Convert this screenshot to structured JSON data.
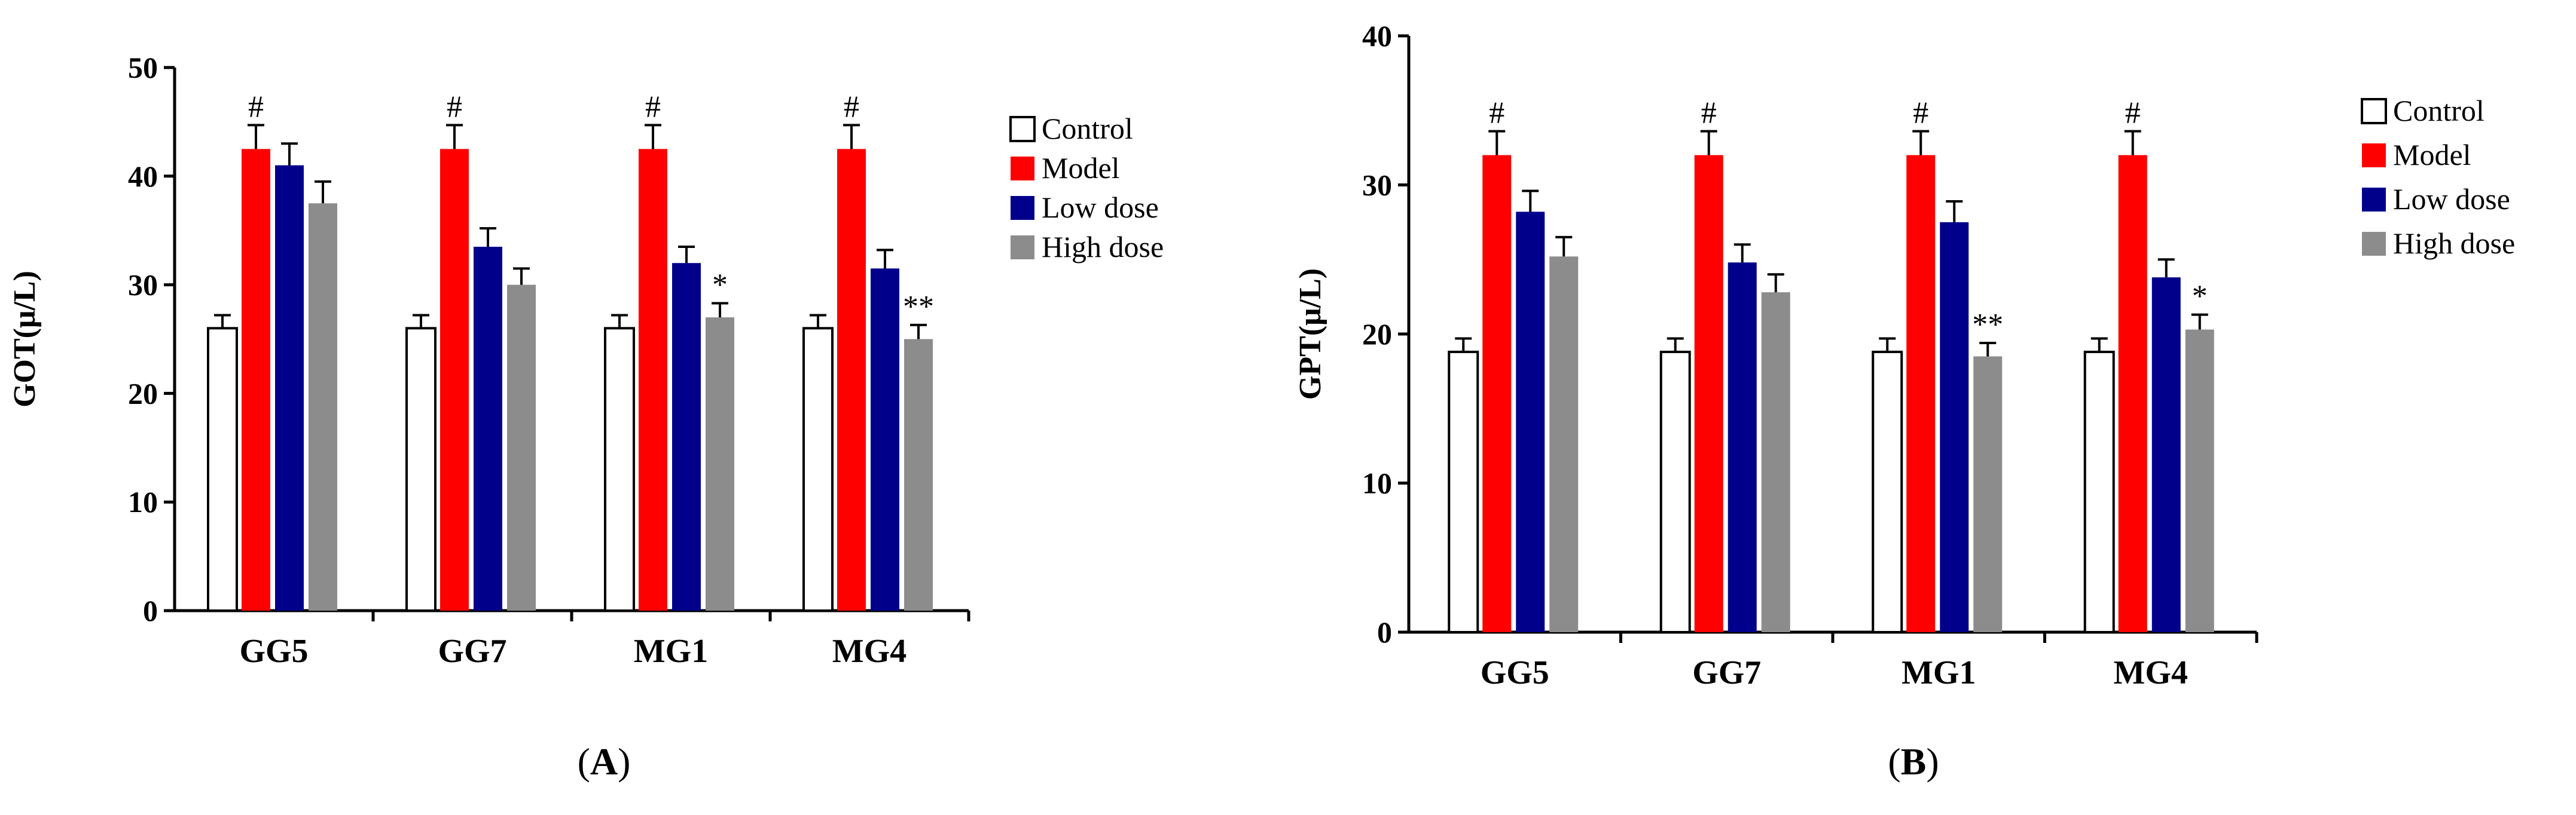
{
  "figure": {
    "panel_a_label_prefix": "(",
    "panel_a_letter": "A",
    "panel_a_label_suffix": ")",
    "panel_b_label_prefix": "(",
    "panel_b_letter": "B",
    "panel_b_label_suffix": ")"
  },
  "colors": {
    "Control": "#ffffff",
    "Model": "#ff0000",
    "Low dose": "#00008b",
    "High dose": "#8c8c8c"
  },
  "chart_data": [
    {
      "type": "bar",
      "panel": "A",
      "title": "",
      "xlabel": "",
      "ylabel": "GOT(μ/L)",
      "ylim": [
        0,
        50
      ],
      "yticks": [
        0,
        10,
        20,
        30,
        40,
        50
      ],
      "categories": [
        "GG5",
        "GG7",
        "MG1",
        "MG4"
      ],
      "series": [
        {
          "name": "Control",
          "values": [
            26,
            26,
            26,
            26
          ],
          "errors": [
            1.2,
            1.2,
            1.2,
            1.2
          ]
        },
        {
          "name": "Model",
          "values": [
            42.5,
            42.5,
            42.5,
            42.5
          ],
          "errors": [
            2.2,
            2.2,
            2.2,
            2.2
          ]
        },
        {
          "name": "Low dose",
          "values": [
            41,
            33.5,
            32,
            31.5
          ],
          "errors": [
            2,
            1.7,
            1.5,
            1.7
          ]
        },
        {
          "name": "High dose",
          "values": [
            37.5,
            30,
            27,
            25
          ],
          "errors": [
            2,
            1.5,
            1.3,
            1.3
          ]
        }
      ],
      "annotations": [
        {
          "category": "GG5",
          "series": "Model",
          "text": "#"
        },
        {
          "category": "GG7",
          "series": "Model",
          "text": "#"
        },
        {
          "category": "MG1",
          "series": "Model",
          "text": "#"
        },
        {
          "category": "MG4",
          "series": "Model",
          "text": "#"
        },
        {
          "category": "MG1",
          "series": "High dose",
          "text": "*"
        },
        {
          "category": "MG4",
          "series": "High dose",
          "text": "**"
        }
      ],
      "legend": [
        "Control",
        "Model",
        "Low dose",
        "High dose"
      ],
      "legend_position": "right"
    },
    {
      "type": "bar",
      "panel": "B",
      "title": "",
      "xlabel": "",
      "ylabel": "GPT(μ/L)",
      "ylim": [
        0,
        40
      ],
      "yticks": [
        0,
        10,
        20,
        30,
        40
      ],
      "categories": [
        "GG5",
        "GG7",
        "MG1",
        "MG4"
      ],
      "series": [
        {
          "name": "Control",
          "values": [
            18.8,
            18.8,
            18.8,
            18.8
          ],
          "errors": [
            0.9,
            0.9,
            0.9,
            0.9
          ]
        },
        {
          "name": "Model",
          "values": [
            32,
            32,
            32,
            32
          ],
          "errors": [
            1.6,
            1.6,
            1.6,
            1.6
          ]
        },
        {
          "name": "Low dose",
          "values": [
            28.2,
            24.8,
            27.5,
            23.8
          ],
          "errors": [
            1.4,
            1.2,
            1.4,
            1.2
          ]
        },
        {
          "name": "High dose",
          "values": [
            25.2,
            22.8,
            18.5,
            20.3
          ],
          "errors": [
            1.3,
            1.2,
            0.9,
            1
          ]
        }
      ],
      "annotations": [
        {
          "category": "GG5",
          "series": "Model",
          "text": "#"
        },
        {
          "category": "GG7",
          "series": "Model",
          "text": "#"
        },
        {
          "category": "MG1",
          "series": "Model",
          "text": "#"
        },
        {
          "category": "MG4",
          "series": "Model",
          "text": "#"
        },
        {
          "category": "MG1",
          "series": "High dose",
          "text": "**"
        },
        {
          "category": "MG4",
          "series": "High dose",
          "text": "*"
        }
      ],
      "legend": [
        "Control",
        "Model",
        "Low dose",
        "High dose"
      ],
      "legend_position": "right"
    }
  ]
}
